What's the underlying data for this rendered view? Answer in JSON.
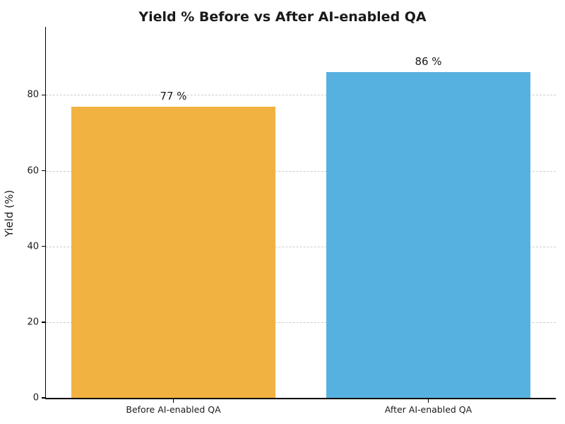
{
  "figure": {
    "background_color": "#ffffff",
    "text_color": "#1a1a1a",
    "axis_color": "#000000",
    "grid_color": "#cccccc"
  },
  "chart_data": {
    "type": "bar",
    "title": "Yield % Before vs After AI-enabled QA",
    "xlabel": "",
    "ylabel": "Yield (%)",
    "categories": [
      "Before AI-enabled QA",
      "After AI-enabled QA"
    ],
    "values": [
      77,
      86
    ],
    "value_labels": [
      "77 %",
      "86 %"
    ],
    "bar_colors": [
      "#F2B242",
      "#57B1E0"
    ],
    "ylim": [
      0,
      98
    ],
    "yticks": [
      0,
      20,
      40,
      60,
      80
    ],
    "grid": "horizontal dashed gridlines at yticks",
    "legend_position": "none",
    "bar_width_fraction": 0.8
  }
}
